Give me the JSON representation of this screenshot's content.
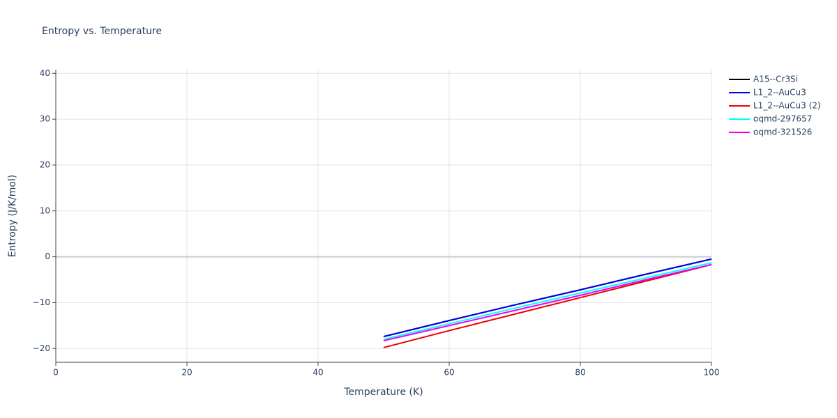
{
  "chart_data": {
    "type": "line",
    "title": "Entropy vs. Temperature",
    "x_label": "Temperature (K)",
    "y_label": "Entropy (J/K/mol)",
    "x": [
      50,
      60,
      70,
      80,
      90,
      100
    ],
    "series": [
      {
        "name": "A15--Cr3Si",
        "color": "#000000",
        "values": [
          -17.4,
          -13.9,
          -10.5,
          -7.2,
          -3.8,
          -0.5
        ]
      },
      {
        "name": "L1_2--AuCu3",
        "color": "#0000ee",
        "values": [
          -17.4,
          -13.9,
          -10.5,
          -7.2,
          -3.8,
          -0.5
        ]
      },
      {
        "name": "L1_2--AuCu3 (2)",
        "color": "#ee0000",
        "values": [
          -19.8,
          -16.1,
          -12.5,
          -8.9,
          -5.3,
          -1.7
        ]
      },
      {
        "name": "oqmd-297657",
        "color": "#00ffff",
        "values": [
          -18.0,
          -14.6,
          -11.2,
          -7.9,
          -4.6,
          -1.3
        ]
      },
      {
        "name": "oqmd-321526",
        "color": "#ee00ee",
        "values": [
          -18.3,
          -15.0,
          -11.7,
          -8.4,
          -5.0,
          -1.7
        ]
      }
    ],
    "xlim": [
      0,
      100
    ],
    "xticks": [
      0,
      20,
      40,
      60,
      80,
      100
    ],
    "ylim": [
      -23,
      40.8
    ],
    "yticks": [
      {
        "value": -20,
        "label": "−20"
      },
      {
        "value": -10,
        "label": "−10"
      },
      0,
      10,
      20,
      30,
      40
    ],
    "grid": true,
    "legend": "right"
  }
}
